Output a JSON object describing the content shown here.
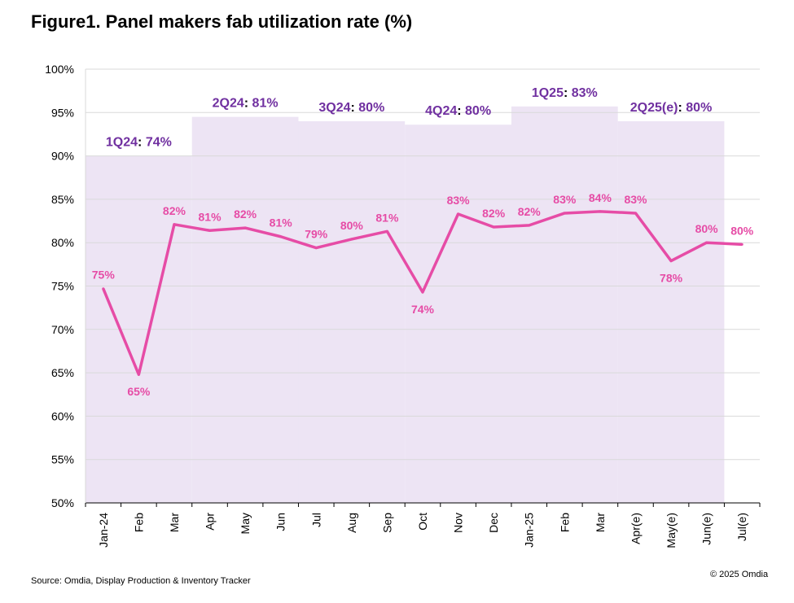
{
  "title": "Figure1. Panel makers fab utilization rate (%)",
  "source": "Source: Omdia, Display Production & Inventory Tracker",
  "copyright": "© 2025 Omdia",
  "chart_data": {
    "type": "line",
    "categories": [
      "Jan-24",
      "Feb",
      "Mar",
      "Apr",
      "May",
      "Jun",
      "Jul",
      "Aug",
      "Sep",
      "Oct",
      "Nov",
      "Dec",
      "Jan-25",
      "Feb",
      "Mar",
      "Apr(e)",
      "May(e)",
      "Jun(e)",
      "Jul(e)"
    ],
    "values": [
      74.7,
      64.8,
      82.1,
      81.4,
      81.7,
      80.7,
      79.4,
      80.4,
      81.3,
      74.3,
      83.3,
      81.8,
      82.0,
      83.4,
      83.6,
      83.4,
      77.9,
      80.0,
      79.8
    ],
    "data_labels": [
      "75%",
      "65%",
      "82%",
      "81%",
      "82%",
      "81%",
      "79%",
      "80%",
      "81%",
      "74%",
      "83%",
      "82%",
      "82%",
      "83%",
      "84%",
      "83%",
      "78%",
      "80%",
      "80%"
    ],
    "label_below": [
      false,
      true,
      false,
      false,
      false,
      false,
      false,
      false,
      false,
      true,
      false,
      false,
      false,
      false,
      false,
      false,
      true,
      false,
      false
    ],
    "ylim": [
      50,
      100
    ],
    "yticks": [
      50,
      55,
      60,
      65,
      70,
      75,
      80,
      85,
      90,
      95,
      100
    ],
    "ytick_labels": [
      "50%",
      "55%",
      "60%",
      "65%",
      "70%",
      "75%",
      "80%",
      "85%",
      "90%",
      "95%",
      "100%"
    ],
    "xlabel": "",
    "ylabel": "",
    "grid": true,
    "line_color": "#e64ca6",
    "quarters": [
      {
        "quarter": "1Q24",
        "rate": "74%",
        "value": 90.0,
        "start": 0,
        "end": 2
      },
      {
        "quarter": "2Q24",
        "rate": "81%",
        "value": 94.5,
        "start": 3,
        "end": 5
      },
      {
        "quarter": "3Q24",
        "rate": "80%",
        "value": 94.0,
        "start": 6,
        "end": 8
      },
      {
        "quarter": "4Q24",
        "rate": "80%",
        "value": 93.6,
        "start": 9,
        "end": 11
      },
      {
        "quarter": "1Q25",
        "rate": "83%",
        "value": 95.7,
        "start": 12,
        "end": 14
      },
      {
        "quarter": "2Q25(e)",
        "rate": "80%",
        "value": 94.0,
        "start": 15,
        "end": 17
      }
    ],
    "quarter_fill_color": "#ede4f4",
    "quarter_label_color": "#7030a0",
    "quarter_sep": ": "
  }
}
